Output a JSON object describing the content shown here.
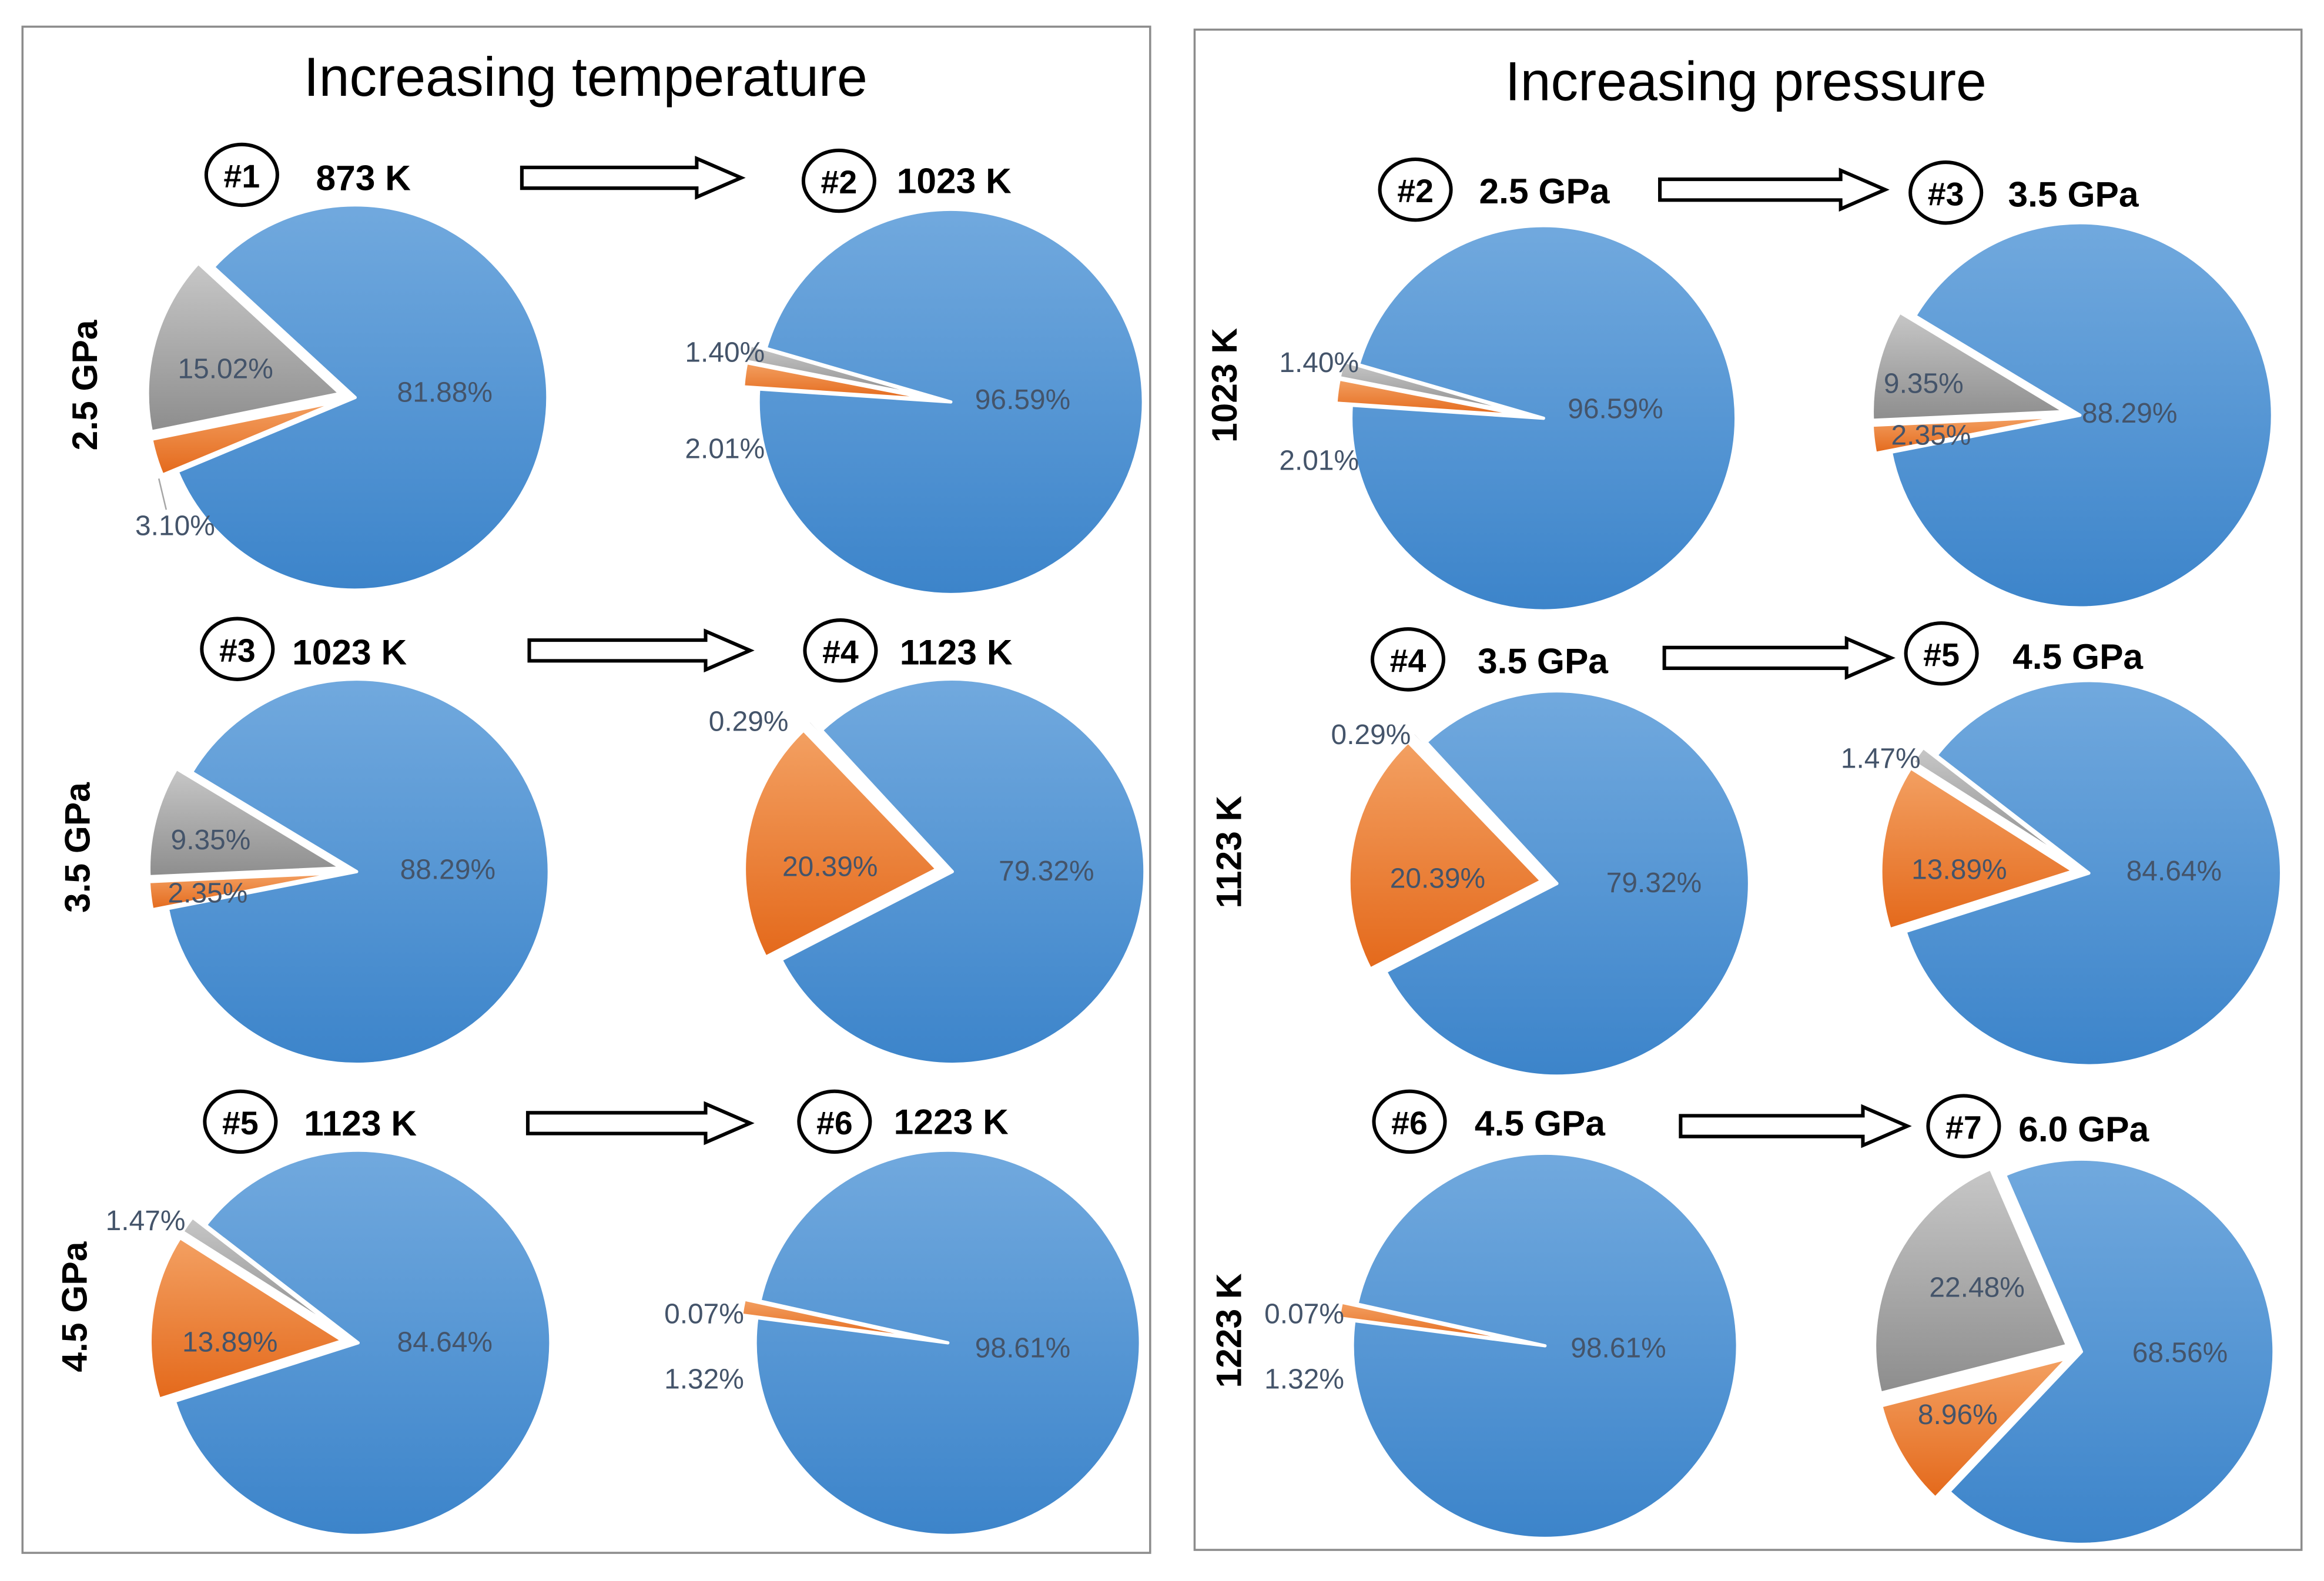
{
  "colors": {
    "blue_light": "#71a9de",
    "blue_dark": "#3c84ca",
    "orange_light": "#f3a062",
    "orange_dark": "#e4691b",
    "gray_light": "#c7c7c7",
    "gray_dark": "#8d8d8d",
    "label_text": "#44546a",
    "panel_border": "#8c8c8c"
  },
  "chart_data": [
    {
      "type": "pie",
      "title": "Increasing temperature",
      "row_labels": [
        "2.5 GPa",
        "3.5 GPa",
        "4.5 GPa"
      ],
      "pies": [
        {
          "id": "#1",
          "condition": "873 K",
          "slices": {
            "blue": {
              "value": 81.88,
              "label": "81.88%"
            },
            "orange": {
              "value": 3.1,
              "label": "3.10%"
            },
            "gray": {
              "value": 15.02,
              "label": "15.02%"
            }
          }
        },
        {
          "id": "#2",
          "condition": "1023 K",
          "slices": {
            "blue": {
              "value": 96.59,
              "label": "96.59%"
            },
            "orange": {
              "value": 2.01,
              "label": "2.01%"
            },
            "gray": {
              "value": 1.4,
              "label": "1.40%"
            }
          }
        },
        {
          "id": "#3",
          "condition": "1023 K",
          "slices": {
            "blue": {
              "value": 88.29,
              "label": "88.29%"
            },
            "orange": {
              "value": 2.35,
              "label": "2.35%"
            },
            "gray": {
              "value": 9.35,
              "label": "9.35%"
            }
          }
        },
        {
          "id": "#4",
          "condition": "1123 K",
          "slices": {
            "blue": {
              "value": 79.32,
              "label": "79.32%"
            },
            "orange": {
              "value": 20.39,
              "label": "20.39%"
            },
            "gray": {
              "value": 0.29,
              "label": "0.29%"
            }
          }
        },
        {
          "id": "#5",
          "condition": "1123 K",
          "slices": {
            "blue": {
              "value": 84.64,
              "label": "84.64%"
            },
            "orange": {
              "value": 13.89,
              "label": "13.89%"
            },
            "gray": {
              "value": 1.47,
              "label": "1.47%"
            }
          }
        },
        {
          "id": "#6",
          "condition": "1223 K",
          "slices": {
            "blue": {
              "value": 98.61,
              "label": "98.61%"
            },
            "orange": {
              "value": 1.32,
              "label": "1.32%"
            },
            "gray": {
              "value": 0.07,
              "label": "0.07%"
            }
          }
        }
      ]
    },
    {
      "type": "pie",
      "title": "Increasing pressure",
      "row_labels": [
        "1023 K",
        "1123 K",
        "1223 K"
      ],
      "pies": [
        {
          "id": "#2",
          "condition": "2.5 GPa",
          "slices": {
            "blue": {
              "value": 96.59,
              "label": "96.59%"
            },
            "orange": {
              "value": 2.01,
              "label": "2.01%"
            },
            "gray": {
              "value": 1.4,
              "label": "1.40%"
            }
          }
        },
        {
          "id": "#3",
          "condition": "3.5 GPa",
          "slices": {
            "blue": {
              "value": 88.29,
              "label": "88.29%"
            },
            "orange": {
              "value": 2.35,
              "label": "2.35%"
            },
            "gray": {
              "value": 9.35,
              "label": "9.35%"
            }
          }
        },
        {
          "id": "#4",
          "condition": "3.5 GPa",
          "slices": {
            "blue": {
              "value": 79.32,
              "label": "79.32%"
            },
            "orange": {
              "value": 20.39,
              "label": "20.39%"
            },
            "gray": {
              "value": 0.29,
              "label": "0.29%"
            }
          }
        },
        {
          "id": "#5",
          "condition": "4.5 GPa",
          "slices": {
            "blue": {
              "value": 84.64,
              "label": "84.64%"
            },
            "orange": {
              "value": 13.89,
              "label": "13.89%"
            },
            "gray": {
              "value": 1.47,
              "label": "1.47%"
            }
          }
        },
        {
          "id": "#6",
          "condition": "4.5 GPa",
          "slices": {
            "blue": {
              "value": 98.61,
              "label": "98.61%"
            },
            "orange": {
              "value": 1.32,
              "label": "1.32%"
            },
            "gray": {
              "value": 0.07,
              "label": "0.07%"
            }
          }
        },
        {
          "id": "#7",
          "condition": "6.0 GPa",
          "slices": {
            "blue": {
              "value": 68.56,
              "label": "68.56%"
            },
            "orange": {
              "value": 8.96,
              "label": "8.96%"
            },
            "gray": {
              "value": 22.48,
              "label": "22.48%"
            }
          }
        }
      ]
    }
  ]
}
